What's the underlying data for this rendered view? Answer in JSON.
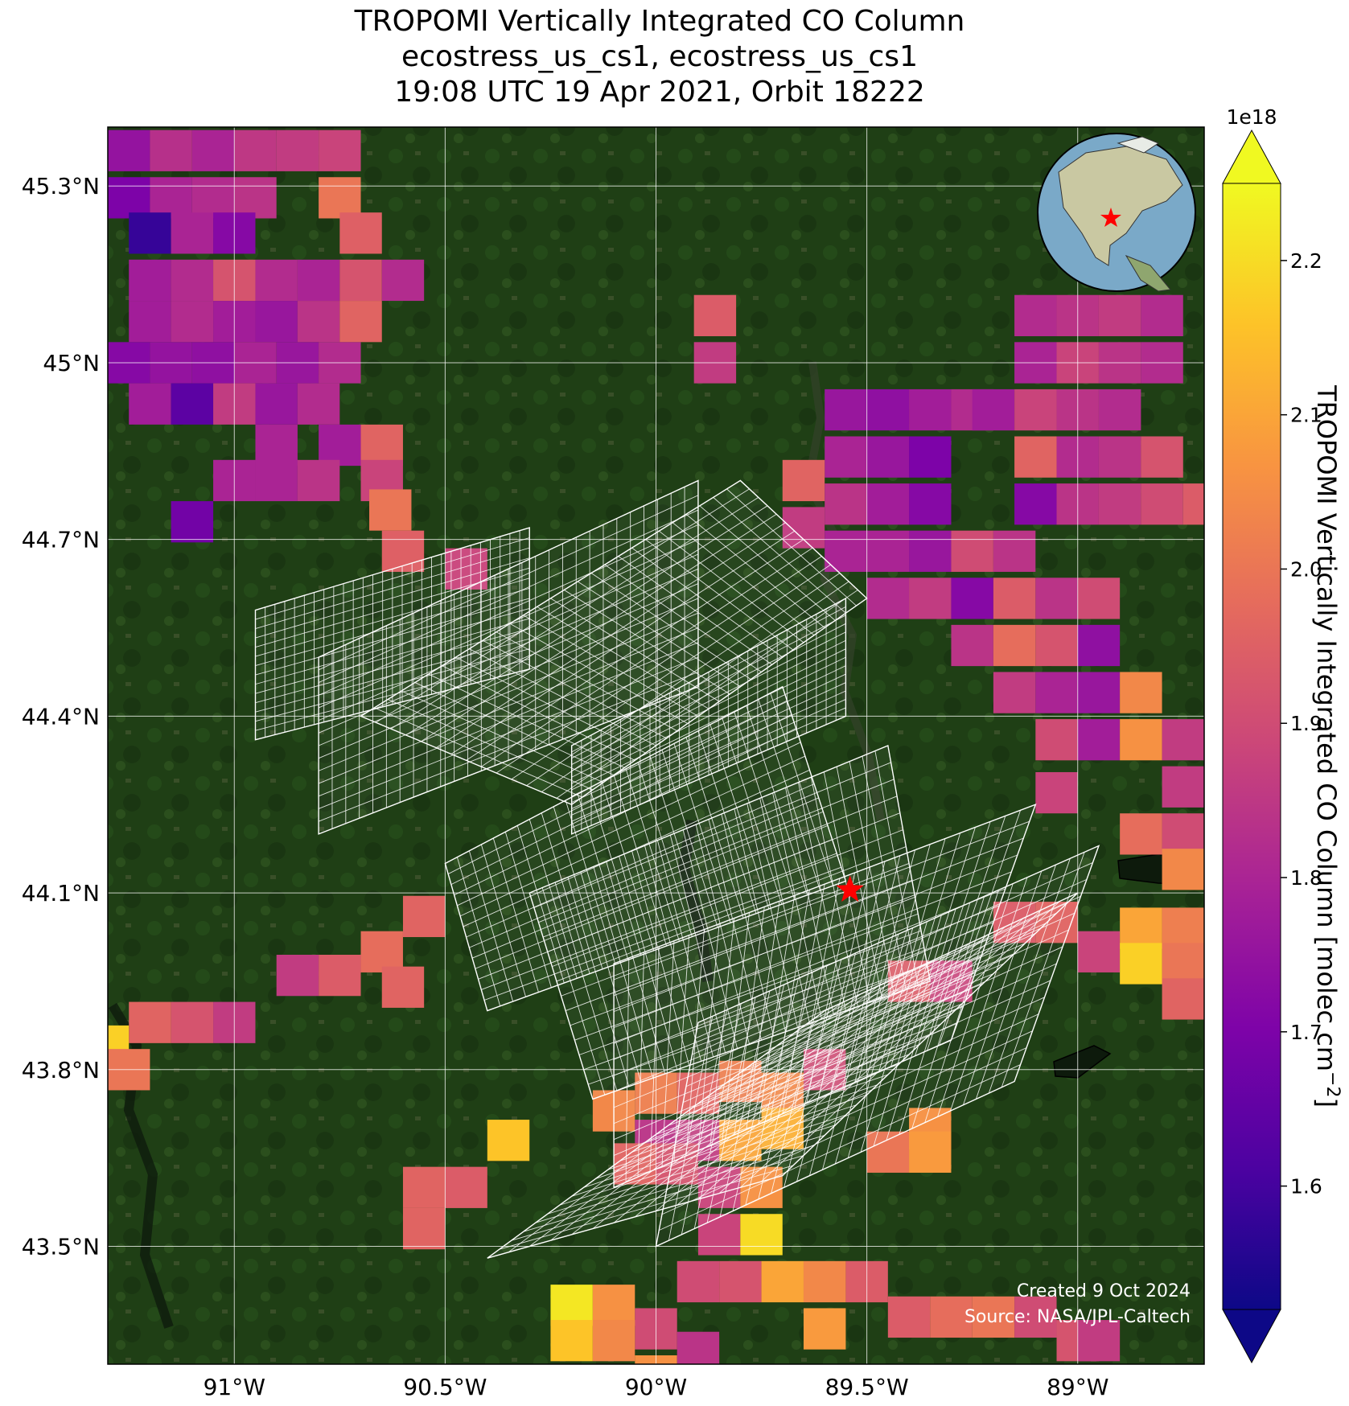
{
  "title": {
    "line1": "TROPOMI Vertically Integrated CO Column",
    "line2": "ecostress_us_cs1, ecostress_us_cs1",
    "line3": "19:08 UTC 19 Apr 2021, Orbit 18222"
  },
  "map": {
    "lon_range": [
      -91.3,
      -88.7
    ],
    "lat_range": [
      43.3,
      45.4
    ],
    "lon_ticks": [
      -91,
      -90.5,
      -90,
      -89.5,
      -89
    ],
    "lon_tick_labels": [
      "91°W",
      "90.5°W",
      "90°W",
      "89.5°W",
      "89°W"
    ],
    "lat_ticks": [
      43.5,
      43.8,
      44.1,
      44.4,
      44.7,
      45.0,
      45.3
    ],
    "lat_tick_labels": [
      "43.5°N",
      "43.8°N",
      "44.1°N",
      "44.4°N",
      "44.7°N",
      "45°N",
      "45.3°N"
    ],
    "target_lon": -89.54,
    "target_lat": 44.105,
    "marker_color": "#ff0000",
    "grid_color": "#ffffff",
    "basemap_color": "#1e3d14",
    "inset_globe": "north-america-globe"
  },
  "colorbar": {
    "label": "TROPOMI Vertically Integrated CO Column [molec cm",
    "label_superscript": "−2",
    "label_close": "]",
    "exponent": "1e18",
    "vmin": 1.52,
    "vmax": 2.25,
    "ticks": [
      1.6,
      1.7,
      1.8,
      1.9,
      2.0,
      2.1,
      2.2
    ],
    "tick_labels": [
      "1.6",
      "1.7",
      "1.8",
      "1.9",
      "2.0",
      "2.1",
      "2.2"
    ],
    "colormap": "plasma",
    "extend": "both"
  },
  "credits": {
    "created": "Created 9 Oct 2024",
    "source": "Source: NASA/JPL-Caltech"
  },
  "chart_data": {
    "type": "heatmap",
    "xlabel": "",
    "ylabel": "",
    "xlim": [
      -91.3,
      -88.7
    ],
    "ylim": [
      43.3,
      45.4
    ],
    "value_units": "1e18 molec cm-2",
    "grid": true,
    "pixels": [
      [
        -91.25,
        45.36,
        1.75
      ],
      [
        -91.15,
        45.36,
        1.83
      ],
      [
        -91.05,
        45.36,
        1.8
      ],
      [
        -90.95,
        45.36,
        1.85
      ],
      [
        -90.85,
        45.36,
        1.86
      ],
      [
        -90.75,
        45.36,
        1.88
      ],
      [
        -91.25,
        45.28,
        1.7
      ],
      [
        -91.15,
        45.28,
        1.8
      ],
      [
        -91.05,
        45.28,
        1.82
      ],
      [
        -90.95,
        45.28,
        1.84
      ],
      [
        -90.75,
        45.28,
        2.0
      ],
      [
        -91.2,
        45.22,
        1.58
      ],
      [
        -91.1,
        45.22,
        1.8
      ],
      [
        -91.0,
        45.22,
        1.72
      ],
      [
        -90.7,
        45.22,
        1.95
      ],
      [
        -91.2,
        45.14,
        1.78
      ],
      [
        -91.1,
        45.14,
        1.82
      ],
      [
        -91.0,
        45.14,
        1.92
      ],
      [
        -90.9,
        45.14,
        1.82
      ],
      [
        -90.8,
        45.14,
        1.8
      ],
      [
        -90.7,
        45.14,
        1.92
      ],
      [
        -90.6,
        45.14,
        1.82
      ],
      [
        -91.2,
        45.07,
        1.78
      ],
      [
        -91.1,
        45.07,
        1.82
      ],
      [
        -91.0,
        45.07,
        1.78
      ],
      [
        -90.9,
        45.07,
        1.76
      ],
      [
        -90.8,
        45.07,
        1.84
      ],
      [
        -90.7,
        45.07,
        1.96
      ],
      [
        -91.25,
        45.0,
        1.72
      ],
      [
        -91.15,
        45.0,
        1.75
      ],
      [
        -91.05,
        45.0,
        1.74
      ],
      [
        -90.95,
        45.0,
        1.8
      ],
      [
        -90.85,
        45.0,
        1.76
      ],
      [
        -90.75,
        45.0,
        1.82
      ],
      [
        -91.2,
        44.93,
        1.78
      ],
      [
        -91.1,
        44.93,
        1.64
      ],
      [
        -91.0,
        44.93,
        1.86
      ],
      [
        -90.9,
        44.93,
        1.76
      ],
      [
        -90.8,
        44.93,
        1.82
      ],
      [
        -90.9,
        44.86,
        1.8
      ],
      [
        -90.75,
        44.86,
        1.78
      ],
      [
        -90.65,
        44.86,
        1.96
      ],
      [
        -91.0,
        44.8,
        1.8
      ],
      [
        -90.9,
        44.8,
        1.8
      ],
      [
        -90.8,
        44.8,
        1.84
      ],
      [
        -90.65,
        44.8,
        1.88
      ],
      [
        -90.63,
        44.75,
        2.0
      ],
      [
        -91.1,
        44.73,
        1.68
      ],
      [
        -90.6,
        44.68,
        1.95
      ],
      [
        -90.45,
        44.65,
        1.88
      ],
      [
        -89.86,
        45.08,
        1.94
      ],
      [
        -89.86,
        45.0,
        1.86
      ],
      [
        -89.55,
        44.92,
        1.76
      ],
      [
        -89.45,
        44.92,
        1.74
      ],
      [
        -89.35,
        44.92,
        1.78
      ],
      [
        -89.25,
        44.92,
        1.82
      ],
      [
        -89.55,
        44.84,
        1.8
      ],
      [
        -89.45,
        44.84,
        1.76
      ],
      [
        -89.35,
        44.84,
        1.7
      ],
      [
        -89.65,
        44.8,
        1.96
      ],
      [
        -89.55,
        44.76,
        1.84
      ],
      [
        -89.45,
        44.76,
        1.78
      ],
      [
        -89.35,
        44.76,
        1.72
      ],
      [
        -89.65,
        44.72,
        1.86
      ],
      [
        -89.55,
        44.68,
        1.8
      ],
      [
        -89.45,
        44.68,
        1.8
      ],
      [
        -89.35,
        44.68,
        1.76
      ],
      [
        -89.25,
        44.68,
        1.9
      ],
      [
        -89.15,
        44.68,
        1.84
      ],
      [
        -89.45,
        44.6,
        1.82
      ],
      [
        -89.35,
        44.6,
        1.86
      ],
      [
        -89.25,
        44.6,
        1.72
      ],
      [
        -89.15,
        44.6,
        1.94
      ],
      [
        -89.05,
        44.6,
        1.84
      ],
      [
        -88.95,
        44.6,
        1.9
      ],
      [
        -89.25,
        44.52,
        1.84
      ],
      [
        -89.15,
        44.52,
        1.98
      ],
      [
        -89.05,
        44.52,
        1.92
      ],
      [
        -88.95,
        44.52,
        1.74
      ],
      [
        -89.15,
        44.44,
        1.86
      ],
      [
        -89.05,
        44.44,
        1.8
      ],
      [
        -88.95,
        44.44,
        1.76
      ],
      [
        -88.85,
        44.44,
        2.04
      ],
      [
        -89.05,
        44.36,
        1.9
      ],
      [
        -88.95,
        44.36,
        1.78
      ],
      [
        -88.85,
        44.36,
        2.06
      ],
      [
        -88.75,
        44.36,
        1.86
      ],
      [
        -89.1,
        45.08,
        1.82
      ],
      [
        -89.0,
        45.08,
        1.84
      ],
      [
        -88.9,
        45.08,
        1.86
      ],
      [
        -88.8,
        45.08,
        1.82
      ],
      [
        -89.1,
        45.0,
        1.8
      ],
      [
        -89.0,
        45.0,
        1.88
      ],
      [
        -88.9,
        45.0,
        1.84
      ],
      [
        -88.8,
        45.0,
        1.82
      ],
      [
        -89.2,
        44.92,
        1.78
      ],
      [
        -89.1,
        44.92,
        1.88
      ],
      [
        -89.0,
        44.92,
        1.84
      ],
      [
        -88.9,
        44.92,
        1.82
      ],
      [
        -89.1,
        44.84,
        1.96
      ],
      [
        -89.0,
        44.84,
        1.82
      ],
      [
        -88.9,
        44.84,
        1.84
      ],
      [
        -88.8,
        44.84,
        1.92
      ],
      [
        -89.1,
        44.76,
        1.72
      ],
      [
        -89.0,
        44.76,
        1.84
      ],
      [
        -88.9,
        44.76,
        1.86
      ],
      [
        -88.8,
        44.76,
        1.9
      ],
      [
        -88.7,
        44.76,
        1.94
      ],
      [
        -88.75,
        44.28,
        1.86
      ],
      [
        -88.75,
        44.2,
        1.9
      ],
      [
        -88.85,
        44.2,
        1.98
      ],
      [
        -88.75,
        44.14,
        2.04
      ],
      [
        -89.05,
        44.27,
        1.88
      ],
      [
        -89.15,
        44.05,
        1.94
      ],
      [
        -89.05,
        44.05,
        1.96
      ],
      [
        -88.95,
        44.0,
        1.88
      ],
      [
        -88.85,
        44.04,
        2.1
      ],
      [
        -88.75,
        44.04,
        2.02
      ],
      [
        -88.85,
        43.98,
        2.18
      ],
      [
        -88.75,
        43.98,
        2.0
      ],
      [
        -88.75,
        43.92,
        1.96
      ],
      [
        -90.55,
        44.06,
        1.96
      ],
      [
        -90.65,
        44.0,
        1.98
      ],
      [
        -90.6,
        43.94,
        1.96
      ],
      [
        -90.75,
        43.96,
        1.94
      ],
      [
        -90.85,
        43.96,
        1.86
      ],
      [
        -91.0,
        43.88,
        1.86
      ],
      [
        -91.1,
        43.88,
        1.92
      ],
      [
        -91.2,
        43.88,
        1.96
      ],
      [
        -91.3,
        43.84,
        2.18
      ],
      [
        -91.25,
        43.8,
        2.0
      ],
      [
        -90.45,
        43.6,
        1.94
      ],
      [
        -90.55,
        43.6,
        1.96
      ],
      [
        -90.55,
        43.53,
        1.96
      ],
      [
        -90.35,
        43.68,
        2.16
      ],
      [
        -90.1,
        43.73,
        2.04
      ],
      [
        -90.0,
        43.76,
        2.02
      ],
      [
        -89.9,
        43.76,
        1.96
      ],
      [
        -89.8,
        43.78,
        2.02
      ],
      [
        -89.7,
        43.76,
        2.04
      ],
      [
        -89.6,
        43.8,
        1.9
      ],
      [
        -90.0,
        43.68,
        1.84
      ],
      [
        -89.9,
        43.68,
        1.86
      ],
      [
        -89.8,
        43.68,
        2.1
      ],
      [
        -89.7,
        43.7,
        2.12
      ],
      [
        -90.05,
        43.64,
        1.96
      ],
      [
        -89.95,
        43.64,
        1.92
      ],
      [
        -89.85,
        43.6,
        1.88
      ],
      [
        -89.75,
        43.6,
        2.06
      ],
      [
        -89.85,
        43.52,
        1.88
      ],
      [
        -89.75,
        43.52,
        2.2
      ],
      [
        -89.9,
        43.44,
        1.9
      ],
      [
        -89.8,
        43.44,
        1.92
      ],
      [
        -89.7,
        43.44,
        2.1
      ],
      [
        -89.6,
        43.44,
        2.04
      ],
      [
        -89.5,
        43.44,
        1.94
      ],
      [
        -89.6,
        43.36,
        2.08
      ],
      [
        -89.45,
        43.66,
        2.0
      ],
      [
        -89.35,
        43.7,
        2.06
      ],
      [
        -89.35,
        43.66,
        2.08
      ],
      [
        -89.4,
        43.38,
        1.94
      ],
      [
        -89.3,
        43.38,
        1.98
      ],
      [
        -89.2,
        43.38,
        2.0
      ],
      [
        -89.1,
        43.38,
        1.9
      ],
      [
        -89.0,
        43.34,
        1.92
      ],
      [
        -88.95,
        43.34,
        1.86
      ],
      [
        -90.2,
        43.4,
        2.22
      ],
      [
        -90.1,
        43.4,
        2.06
      ],
      [
        -90.0,
        43.36,
        1.9
      ],
      [
        -90.2,
        43.34,
        2.16
      ],
      [
        -90.1,
        43.34,
        2.04
      ],
      [
        -90.0,
        43.28,
        2.06
      ],
      [
        -89.9,
        43.32,
        1.84
      ],
      [
        -89.4,
        43.95,
        1.94
      ],
      [
        -89.3,
        43.95,
        1.88
      ]
    ],
    "footprint_grid_strips": 9
  }
}
